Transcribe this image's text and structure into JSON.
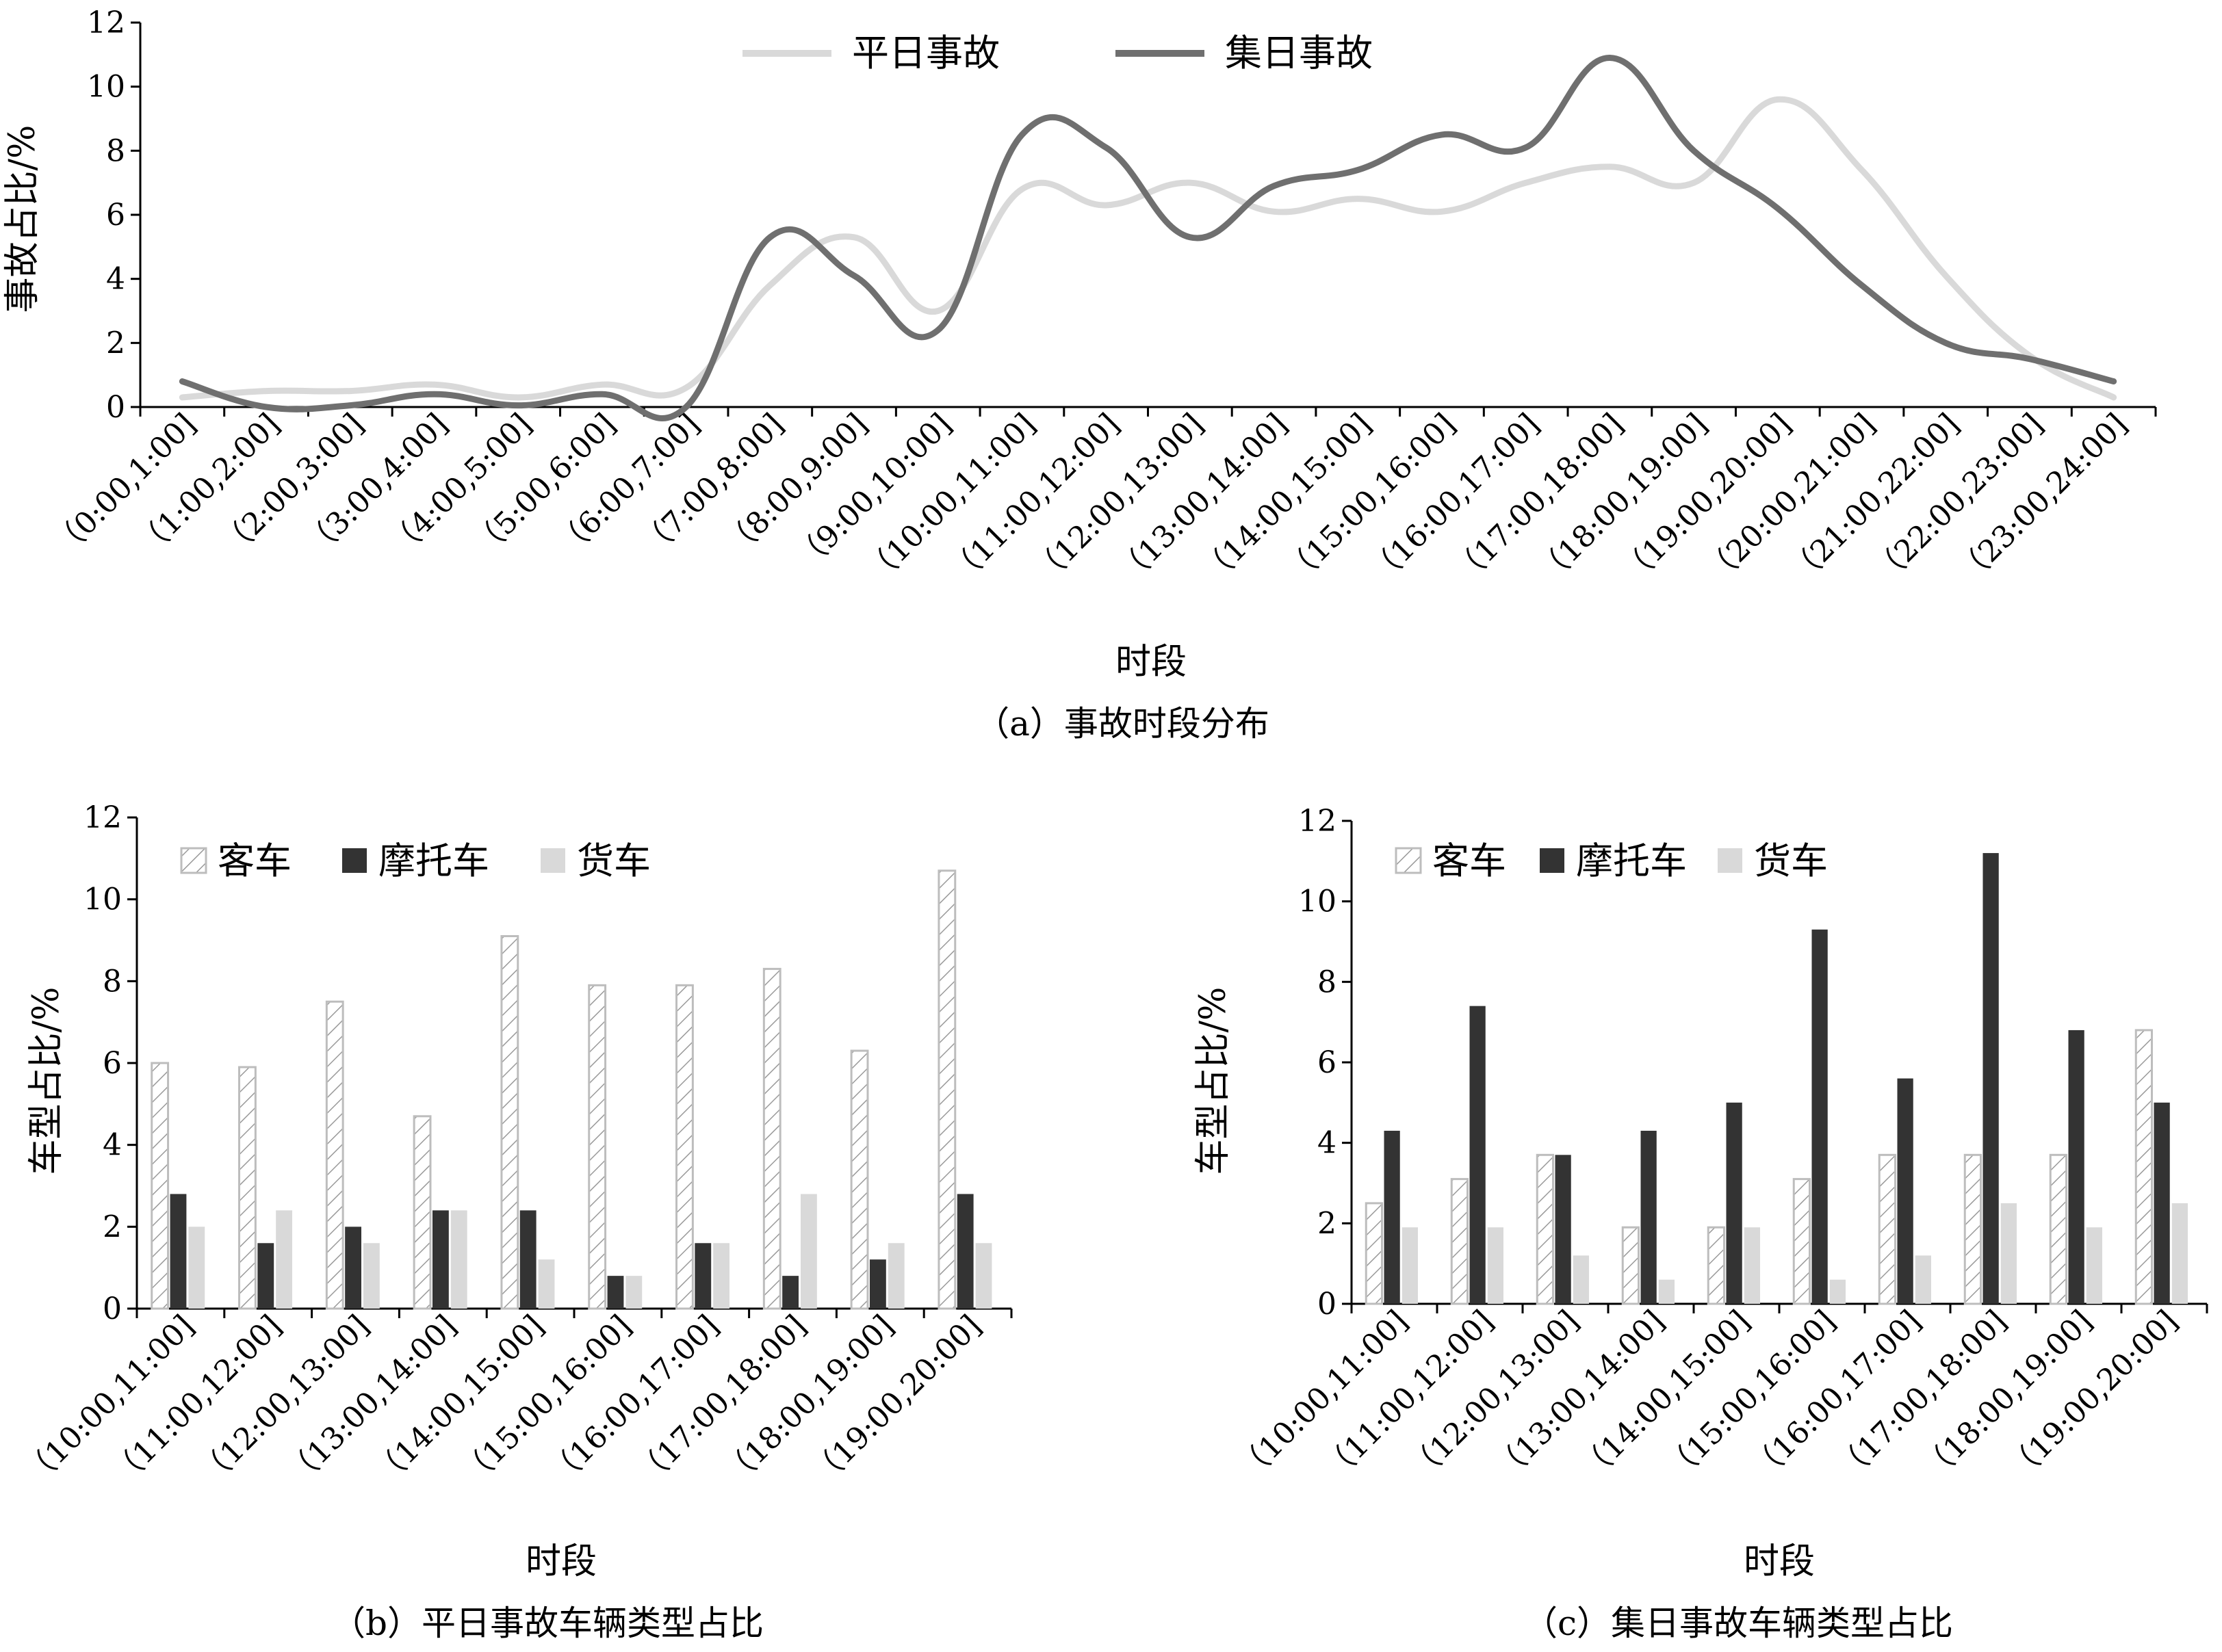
{
  "colors": {
    "weekday": "#d9d9d9",
    "holiday": "#6f6f6f",
    "passenger_outline": "#bdbdbd",
    "motorcycle": "#333333",
    "truck": "#d9d9d9"
  },
  "chart_data": [
    {
      "type": "line",
      "caption": "（a）事故时段分布",
      "xlabel": "时段",
      "ylabel": "事故占比/%",
      "ylim": [
        0,
        12
      ],
      "yticks": [
        0,
        2,
        4,
        6,
        8,
        10,
        12
      ],
      "categories": [
        "（0:00,1:00]",
        "（1:00,2:00]",
        "（2:00,3:00]",
        "（3:00,4:00]",
        "（4:00,5:00]",
        "（5:00,6:00]",
        "（6:00,7:00]",
        "（7:00,8:00]",
        "（8:00,9:00]",
        "（9:00,10:00]",
        "（10:00,11:00]",
        "（11:00,12:00]",
        "（12:00,13:00]",
        "（13:00,14:00]",
        "（14:00,15:00]",
        "（15:00,16:00]",
        "（16:00,17:00]",
        "（17:00,18:00]",
        "（18:00,19:00]",
        "（19:00,20:00]",
        "（20:00,21:00]",
        "（21:00,22:00]",
        "（22:00,23:00]",
        "（23:00,24:00]"
      ],
      "series": [
        {
          "name": "平日事故",
          "color": "#d9d9d9",
          "values": [
            0.3,
            0.5,
            0.5,
            0.7,
            0.3,
            0.7,
            0.6,
            3.8,
            5.3,
            3.0,
            6.8,
            6.3,
            7.0,
            6.1,
            6.5,
            6.1,
            7.0,
            7.5,
            7.0,
            9.6,
            7.4,
            4.1,
            1.6,
            0.3
          ]
        },
        {
          "name": "集日事故",
          "color": "#6f6f6f",
          "values": [
            0.8,
            0.0,
            0.05,
            0.4,
            0.05,
            0.4,
            0.0,
            5.3,
            4.1,
            2.4,
            8.5,
            8.1,
            5.3,
            6.9,
            7.4,
            8.5,
            8.1,
            10.9,
            8.0,
            6.2,
            3.8,
            2.0,
            1.5,
            0.8
          ]
        }
      ]
    },
    {
      "type": "bar",
      "caption": "（b）平日事故车辆类型占比",
      "xlabel": "时段",
      "ylabel": "车型占比/%",
      "ylim": [
        0,
        12
      ],
      "yticks": [
        0,
        2,
        4,
        6,
        8,
        10,
        12
      ],
      "categories": [
        "（10:00,11:00]",
        "（11:00,12:00]",
        "（12:00,13:00]",
        "（13:00,14:00]",
        "（14:00,15:00]",
        "（15:00,16:00]",
        "（16:00,17:00]",
        "（17:00,18:00]",
        "（18:00,19:00]",
        "（19:00,20:00]"
      ],
      "series": [
        {
          "name": "客车",
          "values": [
            6.0,
            5.9,
            7.5,
            4.7,
            9.1,
            7.9,
            7.9,
            8.3,
            6.3,
            10.7
          ]
        },
        {
          "name": "摩托车",
          "values": [
            2.8,
            1.6,
            2.0,
            2.4,
            2.4,
            0.8,
            1.6,
            0.8,
            1.2,
            2.8
          ]
        },
        {
          "name": "货车",
          "values": [
            2.0,
            2.4,
            1.6,
            2.4,
            1.2,
            0.8,
            1.6,
            2.8,
            1.6,
            1.6
          ]
        }
      ]
    },
    {
      "type": "bar",
      "caption": "（c）集日事故车辆类型占比",
      "xlabel": "时段",
      "ylabel": "车型占比/%",
      "ylim": [
        0,
        12
      ],
      "yticks": [
        0,
        2,
        4,
        6,
        8,
        10,
        12
      ],
      "categories": [
        "（10:00,11:00]",
        "（11:00,12:00]",
        "（12:00,13:00]",
        "（13:00,14:00]",
        "（14:00,15:00]",
        "（15:00,16:00]",
        "（16:00,17:00]",
        "（17:00,18:00]",
        "（18:00,19:00]",
        "（19:00,20:00]"
      ],
      "series": [
        {
          "name": "客车",
          "values": [
            2.5,
            3.1,
            3.7,
            1.9,
            1.9,
            3.1,
            3.7,
            3.7,
            3.7,
            6.8
          ]
        },
        {
          "name": "摩托车",
          "values": [
            4.3,
            7.4,
            3.7,
            4.3,
            5.0,
            9.3,
            5.6,
            11.2,
            6.8,
            5.0
          ]
        },
        {
          "name": "货车",
          "values": [
            1.9,
            1.9,
            1.2,
            0.6,
            1.9,
            0.6,
            1.2,
            2.5,
            1.9,
            2.5
          ]
        }
      ]
    }
  ]
}
